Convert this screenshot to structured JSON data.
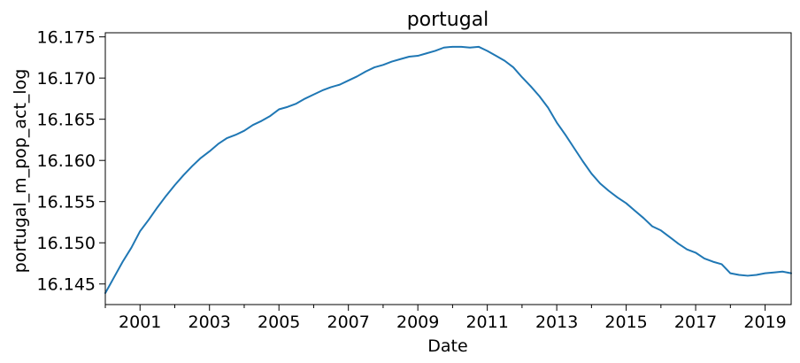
{
  "chart_data": {
    "type": "line",
    "title": "portugal",
    "xlabel": "Date",
    "ylabel": "portugal_m_pop_act_log",
    "x_tick_labels": [
      "2001",
      "2003",
      "2005",
      "2007",
      "2009",
      "2011",
      "2013",
      "2015",
      "2017",
      "2019"
    ],
    "y_tick_labels": [
      "16.145",
      "16.150",
      "16.155",
      "16.160",
      "16.165",
      "16.170",
      "16.175"
    ],
    "xlim": [
      "2000-01",
      "2019-10"
    ],
    "ylim": [
      16.1425,
      16.1755
    ],
    "line_color": "#1f77b4",
    "grid": false,
    "series": [
      {
        "x": [
          "2000-01",
          "2000-04",
          "2000-07",
          "2000-10",
          "2001-01",
          "2001-04",
          "2001-07",
          "2001-10",
          "2002-01",
          "2002-04",
          "2002-07",
          "2002-10",
          "2003-01",
          "2003-04",
          "2003-07",
          "2003-10",
          "2004-01",
          "2004-04",
          "2004-07",
          "2004-10",
          "2005-01",
          "2005-04",
          "2005-07",
          "2005-10",
          "2006-01",
          "2006-04",
          "2006-07",
          "2006-10",
          "2007-01",
          "2007-04",
          "2007-07",
          "2007-10",
          "2008-01",
          "2008-04",
          "2008-07",
          "2008-10",
          "2009-01",
          "2009-04",
          "2009-07",
          "2009-10",
          "2010-01",
          "2010-04",
          "2010-07",
          "2010-10",
          "2011-01",
          "2011-04",
          "2011-07",
          "2011-10",
          "2012-01",
          "2012-04",
          "2012-07",
          "2012-10",
          "2013-01",
          "2013-04",
          "2013-07",
          "2013-10",
          "2014-01",
          "2014-04",
          "2014-07",
          "2014-10",
          "2015-01",
          "2015-04",
          "2015-07",
          "2015-10",
          "2016-01",
          "2016-04",
          "2016-07",
          "2016-10",
          "2017-01",
          "2017-04",
          "2017-07",
          "2017-10",
          "2018-01",
          "2018-04",
          "2018-07",
          "2018-10",
          "2019-01",
          "2019-04",
          "2019-07",
          "2019-10"
        ],
        "y": [
          16.1439,
          16.1458,
          16.1477,
          16.1494,
          16.1514,
          16.1528,
          16.1543,
          16.1557,
          16.157,
          16.1582,
          16.1593,
          16.1603,
          16.1611,
          16.162,
          16.1627,
          16.1631,
          16.1636,
          16.1643,
          16.1648,
          16.1654,
          16.1662,
          16.1665,
          16.1669,
          16.1675,
          16.168,
          16.1685,
          16.1689,
          16.1692,
          16.1697,
          16.1702,
          16.1708,
          16.1713,
          16.1716,
          16.172,
          16.1723,
          16.1726,
          16.1727,
          16.173,
          16.1733,
          16.1737,
          16.1738,
          16.1738,
          16.1737,
          16.1738,
          16.1733,
          16.1727,
          16.1721,
          16.1713,
          16.1701,
          16.169,
          16.1678,
          16.1664,
          16.1646,
          16.1631,
          16.1615,
          16.1599,
          16.1584,
          16.1572,
          16.1563,
          16.1555,
          16.1548,
          16.1539,
          16.153,
          16.152,
          16.1515,
          16.1507,
          16.1499,
          16.1492,
          16.1488,
          16.1481,
          16.1477,
          16.1474,
          16.1463,
          16.1461,
          16.146,
          16.1461,
          16.1463,
          16.1464,
          16.1465,
          16.1463
        ]
      }
    ]
  }
}
